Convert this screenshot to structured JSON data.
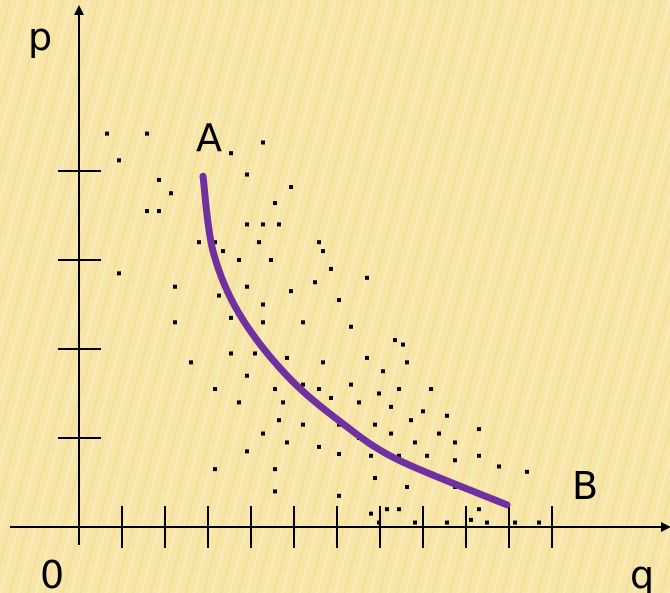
{
  "chart_data": {
    "type": "scatter",
    "xlabel": "q",
    "ylabel": "p",
    "origin_label": "0",
    "x_ticks": 11,
    "y_ticks": 4,
    "curve": {
      "start_label": "A",
      "end_label": "B",
      "color": "#7030a0",
      "points": [
        [
          3.1,
          3.94
        ],
        [
          3.35,
          3.1
        ],
        [
          4.0,
          2.4
        ],
        [
          5.2,
          1.7
        ],
        [
          6.6,
          1.16
        ],
        [
          8.0,
          0.75
        ],
        [
          10.7,
          0.25
        ]
      ]
    },
    "points": [
      [
        0.7,
        4.42
      ],
      [
        1.7,
        4.42
      ],
      [
        1.0,
        4.12
      ],
      [
        2.0,
        3.9
      ],
      [
        2.3,
        3.75
      ],
      [
        1.7,
        3.55
      ],
      [
        2.0,
        3.55
      ],
      [
        3.2,
        3.55
      ],
      [
        3.8,
        4.2
      ],
      [
        4.6,
        4.32
      ],
      [
        4.2,
        3.96
      ],
      [
        5.3,
        3.82
      ],
      [
        4.9,
        3.64
      ],
      [
        4.2,
        3.4
      ],
      [
        4.6,
        3.4
      ],
      [
        5.0,
        3.4
      ],
      [
        3.0,
        3.2
      ],
      [
        3.4,
        3.2
      ],
      [
        3.6,
        3.1
      ],
      [
        4.5,
        3.2
      ],
      [
        4.0,
        3.0
      ],
      [
        4.8,
        3.0
      ],
      [
        1.0,
        2.85
      ],
      [
        2.4,
        2.7
      ],
      [
        3.5,
        2.6
      ],
      [
        4.2,
        2.7
      ],
      [
        4.6,
        2.5
      ],
      [
        5.3,
        2.65
      ],
      [
        6.0,
        3.2
      ],
      [
        6.1,
        3.1
      ],
      [
        6.3,
        2.9
      ],
      [
        5.9,
        2.75
      ],
      [
        6.5,
        2.55
      ],
      [
        7.2,
        2.8
      ],
      [
        2.4,
        2.3
      ],
      [
        3.8,
        2.35
      ],
      [
        4.6,
        2.3
      ],
      [
        5.6,
        2.3
      ],
      [
        6.8,
        2.25
      ],
      [
        7.9,
        2.1
      ],
      [
        8.1,
        2.05
      ],
      [
        2.8,
        1.85
      ],
      [
        3.8,
        1.95
      ],
      [
        4.4,
        1.95
      ],
      [
        5.2,
        1.9
      ],
      [
        6.1,
        1.85
      ],
      [
        7.2,
        1.9
      ],
      [
        7.6,
        1.75
      ],
      [
        8.2,
        1.85
      ],
      [
        4.2,
        1.7
      ],
      [
        4.9,
        1.55
      ],
      [
        5.6,
        1.6
      ],
      [
        6.0,
        1.55
      ],
      [
        6.8,
        1.6
      ],
      [
        7.5,
        1.5
      ],
      [
        8.0,
        1.55
      ],
      [
        8.8,
        1.55
      ],
      [
        3.4,
        1.55
      ],
      [
        4.0,
        1.4
      ],
      [
        5.1,
        1.4
      ],
      [
        6.3,
        1.45
      ],
      [
        7.0,
        1.4
      ],
      [
        7.8,
        1.35
      ],
      [
        8.6,
        1.3
      ],
      [
        9.2,
        1.25
      ],
      [
        5.0,
        1.2
      ],
      [
        5.6,
        1.15
      ],
      [
        6.5,
        1.15
      ],
      [
        7.4,
        1.15
      ],
      [
        8.3,
        1.2
      ],
      [
        9.0,
        1.05
      ],
      [
        10.0,
        1.1
      ],
      [
        4.6,
        1.05
      ],
      [
        5.2,
        0.95
      ],
      [
        6.0,
        0.9
      ],
      [
        7.0,
        1.0
      ],
      [
        7.8,
        1.05
      ],
      [
        8.4,
        0.95
      ],
      [
        9.4,
        0.95
      ],
      [
        4.2,
        0.85
      ],
      [
        6.5,
        0.82
      ],
      [
        7.3,
        0.8
      ],
      [
        8.0,
        0.8
      ],
      [
        8.7,
        0.8
      ],
      [
        9.4,
        0.75
      ],
      [
        10.0,
        0.8
      ],
      [
        10.5,
        0.68
      ],
      [
        11.2,
        0.62
      ],
      [
        3.4,
        0.65
      ],
      [
        4.9,
        0.65
      ],
      [
        7.4,
        0.55
      ],
      [
        8.2,
        0.45
      ],
      [
        9.4,
        0.45
      ],
      [
        4.9,
        0.4
      ],
      [
        6.5,
        0.35
      ],
      [
        8.0,
        0.2
      ],
      [
        7.7,
        0.2
      ],
      [
        10.0,
        0.2
      ],
      [
        7.3,
        0.15
      ],
      [
        7.5,
        0.05
      ],
      [
        8.4,
        0.05
      ],
      [
        9.2,
        0.05
      ],
      [
        9.8,
        0.08
      ],
      [
        10.2,
        0.05
      ],
      [
        10.9,
        0.05
      ],
      [
        11.5,
        0.05
      ]
    ]
  }
}
